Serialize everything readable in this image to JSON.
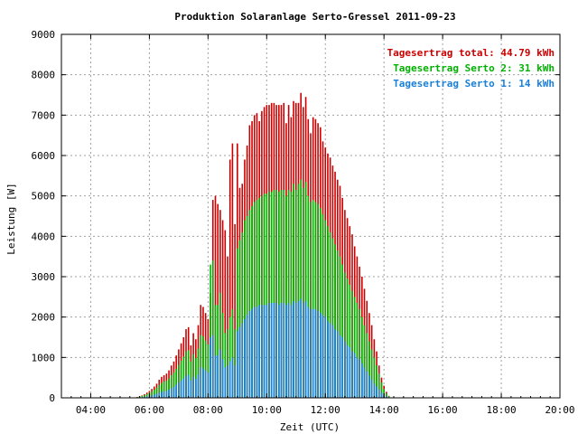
{
  "chart_data": {
    "type": "bar",
    "title": "Produktion Solaranlage Serto-Gressel 2011-09-23",
    "xlabel": "Zeit (UTC)",
    "ylabel": "Leistung [W]",
    "xlim": [
      "03:00",
      "20:00"
    ],
    "ylim": [
      0,
      9000
    ],
    "x_ticks": [
      "04:00",
      "06:00",
      "08:00",
      "10:00",
      "12:00",
      "14:00",
      "16:00",
      "18:00",
      "20:00"
    ],
    "y_ticks": [
      "0",
      "1000",
      "2000",
      "3000",
      "4000",
      "5000",
      "6000",
      "7000",
      "8000",
      "9000"
    ],
    "grid": true,
    "legend_position": "top-right",
    "interval_minutes": 5,
    "start_time": "05:35",
    "series": [
      {
        "name": "Tagesertrag total: 44.79 kWh",
        "color": "#cc0000",
        "values": [
          20,
          40,
          60,
          90,
          130,
          170,
          220,
          280,
          350,
          450,
          520,
          560,
          600,
          680,
          800,
          900,
          1050,
          1200,
          1350,
          1500,
          1700,
          1750,
          1300,
          1600,
          1450,
          1800,
          2300,
          2250,
          2100,
          1950,
          2600,
          4900,
          5000,
          4800,
          4650,
          4400,
          4150,
          3500,
          5900,
          6300,
          4300,
          6300,
          5200,
          5300,
          5900,
          6250,
          6750,
          6850,
          7000,
          7050,
          6850,
          7100,
          7200,
          7250,
          7250,
          7300,
          7300,
          7250,
          7250,
          7250,
          7300,
          6800,
          7250,
          6950,
          7350,
          7300,
          7300,
          7550,
          7200,
          7450,
          6900,
          6550,
          6950,
          6900,
          6800,
          6700,
          6350,
          6200,
          6050,
          5950,
          5750,
          5600,
          5400,
          5250,
          4950,
          4650,
          4450,
          4250,
          4050,
          3750,
          3500,
          3250,
          3000,
          2700,
          2400,
          2100,
          1800,
          1450,
          1150,
          800,
          500,
          300,
          150,
          50
        ]
      },
      {
        "name": "Tagesertrag Serto 2: 31 kWh",
        "color": "#00b000",
        "values": [
          15,
          30,
          45,
          65,
          95,
          125,
          160,
          200,
          250,
          320,
          370,
          400,
          430,
          480,
          560,
          630,
          720,
          820,
          920,
          1020,
          1150,
          1180,
          900,
          1080,
          980,
          1220,
          1550,
          1520,
          1420,
          1320,
          3300,
          3400,
          2300,
          2300,
          2600,
          2100,
          1600,
          1700,
          2000,
          2200,
          1700,
          3700,
          3900,
          4100,
          4400,
          4500,
          4650,
          4750,
          4850,
          4900,
          4950,
          5000,
          5050,
          5050,
          5100,
          5100,
          5150,
          5150,
          5100,
          5150,
          5150,
          5000,
          5150,
          5100,
          5300,
          5150,
          5300,
          5400,
          5200,
          5350,
          5000,
          4850,
          4900,
          4850,
          4800,
          4700,
          4550,
          4400,
          4250,
          4100,
          3950,
          3800,
          3650,
          3500,
          3300,
          3100,
          2950,
          2800,
          2650,
          2500,
          2350,
          2200,
          2000,
          1800,
          1600,
          1400,
          1200,
          1000,
          800,
          600,
          380,
          220,
          110,
          40
        ]
      },
      {
        "name": "Tagesertrag Serto 1: 14 kWh",
        "color": "#1a80d8",
        "values": [
          5,
          10,
          15,
          25,
          35,
          45,
          60,
          80,
          100,
          130,
          150,
          160,
          170,
          200,
          240,
          270,
          330,
          380,
          430,
          480,
          550,
          570,
          430,
          520,
          470,
          580,
          750,
          730,
          680,
          630,
          1500,
          1550,
          1050,
          1050,
          1200,
          950,
          750,
          800,
          900,
          1000,
          800,
          1650,
          1750,
          1850,
          1950,
          2050,
          2150,
          2200,
          2250,
          2250,
          2300,
          2300,
          2300,
          2300,
          2350,
          2350,
          2350,
          2350,
          2300,
          2350,
          2350,
          2300,
          2350,
          2300,
          2400,
          2350,
          2400,
          2450,
          2350,
          2400,
          2250,
          2200,
          2200,
          2200,
          2150,
          2100,
          2050,
          2000,
          1900,
          1850,
          1800,
          1700,
          1650,
          1550,
          1500,
          1400,
          1300,
          1250,
          1150,
          1100,
          1000,
          950,
          850,
          750,
          650,
          550,
          450,
          350,
          280,
          200,
          130,
          80,
          40,
          15
        ]
      }
    ]
  }
}
